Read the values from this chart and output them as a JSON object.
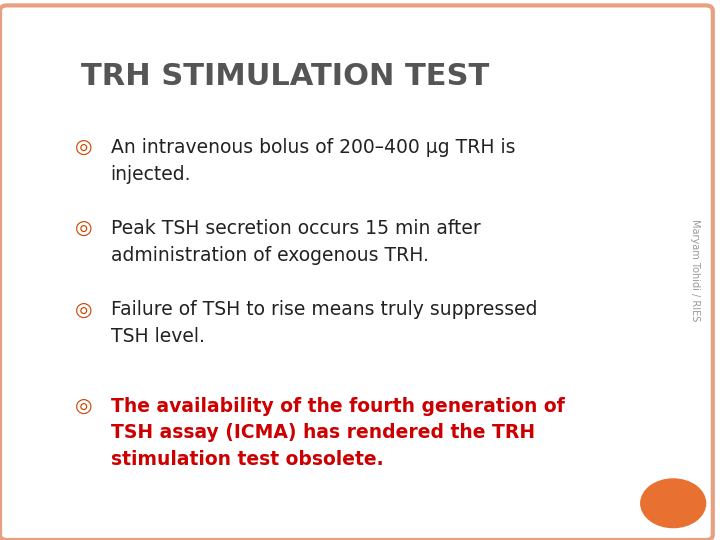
{
  "title": "TRH STIMULATION TEST",
  "title_color": "#555555",
  "title_fontsize": 22,
  "background_color": "#ffffff",
  "border_color": "#e8a080",
  "bullet_color": "#cc4400",
  "bullet_char": "◎",
  "bullets": [
    {
      "text": "An intravenous bolus of 200–400 μg TRH is\ninjected.",
      "bold": false,
      "color": "#222222"
    },
    {
      "text": "Peak TSH secretion occurs 15 min after\nadministration of exogenous TRH.",
      "bold": false,
      "color": "#222222"
    },
    {
      "text": "Failure of TSH to rise means truly suppressed\nTSH level.",
      "bold": false,
      "color": "#222222"
    },
    {
      "text": "The availability of the fourth generation of\nTSH assay (ICMA) has rendered the TRH\nstimulation test obsolete.",
      "bold": true,
      "color": "#cc0000"
    }
  ],
  "watermark": "Maryam Tohidi / RIES",
  "watermark_color": "#999999",
  "orange_circle_color": "#e87030",
  "bullet_fontsize": 13.5,
  "bold_fontsize": 13.5
}
